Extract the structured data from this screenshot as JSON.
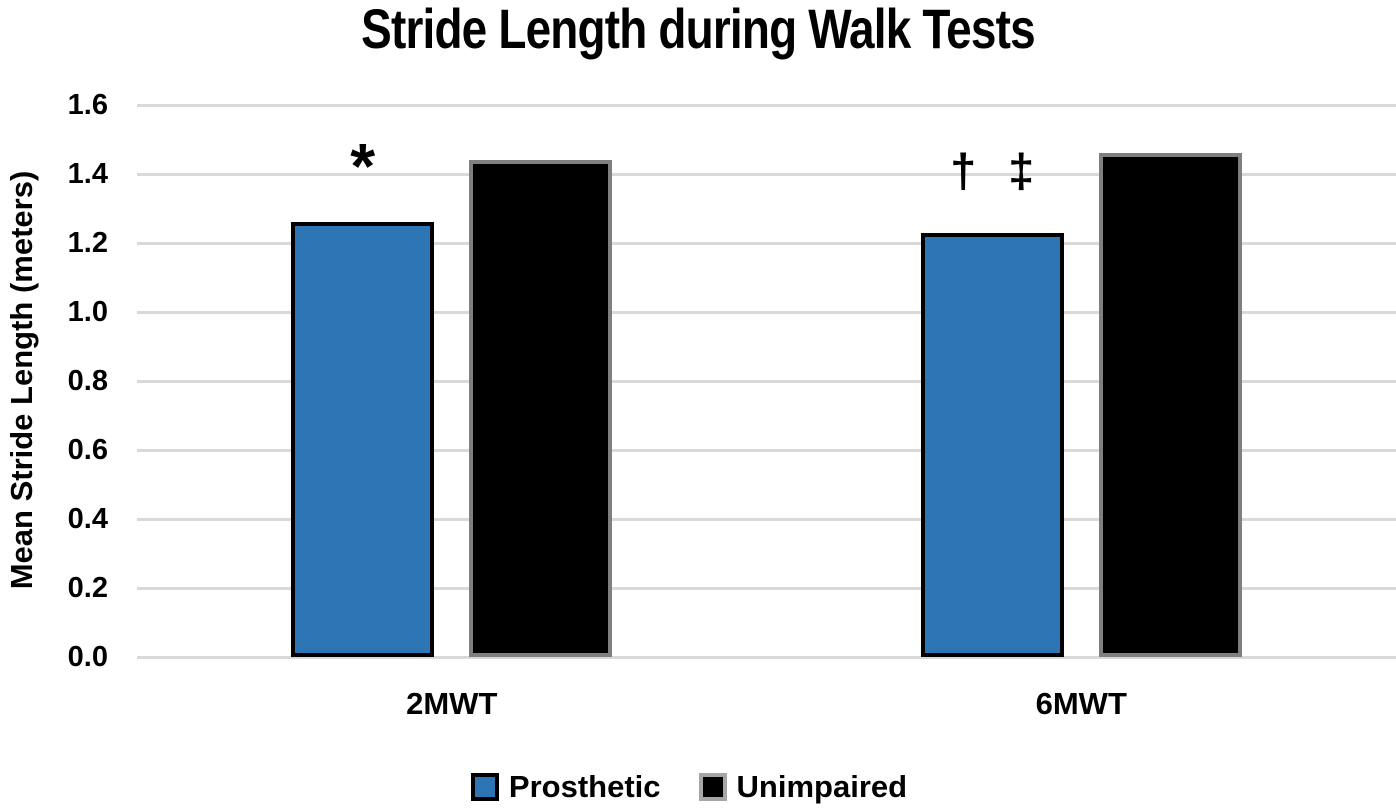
{
  "chart_data": {
    "type": "bar",
    "title": "Stride Length during Walk Tests",
    "xlabel": "",
    "ylabel": "Mean Stride Length (meters)",
    "categories": [
      "2MWT",
      "6MWT"
    ],
    "series": [
      {
        "name": "Prosthetic",
        "color": "#2E75B6",
        "border_color": "#000000",
        "values": [
          1.26,
          1.23
        ]
      },
      {
        "name": "Unimpaired",
        "color": "#000000",
        "border_color": "#7F7F7F",
        "values": [
          1.44,
          1.46
        ]
      }
    ],
    "ylim": [
      0.0,
      1.6
    ],
    "ytick_step": 0.2,
    "ytick_labels": [
      "0.0",
      "0.2",
      "0.4",
      "0.6",
      "0.8",
      "1.0",
      "1.2",
      "1.4",
      "1.6"
    ],
    "grid": true,
    "gridline_color": "#D9D9D9",
    "legend_position": "bottom",
    "annotations": [
      {
        "symbols": [
          "*"
        ],
        "category": "2MWT",
        "series": "Prosthetic"
      },
      {
        "symbols": [
          "†",
          "‡"
        ],
        "category": "6MWT",
        "series": "Prosthetic"
      }
    ]
  }
}
